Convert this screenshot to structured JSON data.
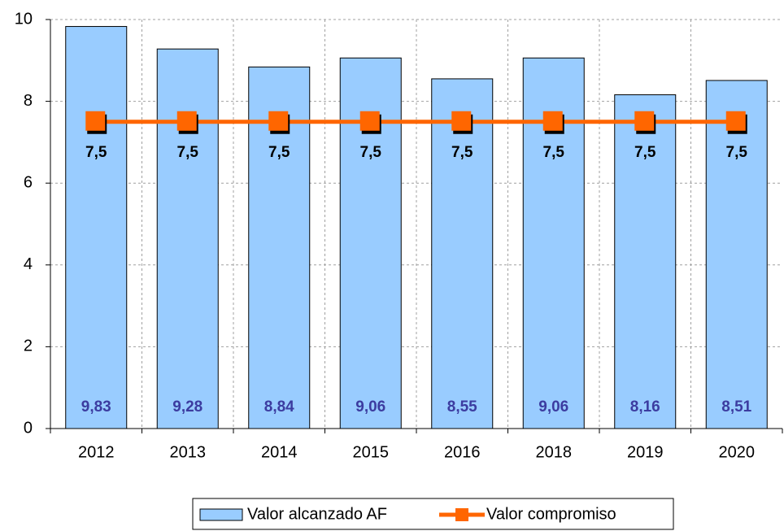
{
  "chart_data": {
    "type": "bar",
    "categories": [
      "2012",
      "2013",
      "2014",
      "2015",
      "2016",
      "2018",
      "2019",
      "2020"
    ],
    "series": [
      {
        "name": "Valor alcanzado AF",
        "type": "bar",
        "color": "#99ccff",
        "values": [
          9.83,
          9.28,
          8.84,
          9.06,
          8.55,
          9.06,
          8.16,
          8.51
        ],
        "value_labels": [
          "9,83",
          "9,28",
          "8,84",
          "9,06",
          "8,55",
          "9,06",
          "8,16",
          "8,51"
        ]
      },
      {
        "name": "Valor compromiso",
        "type": "line",
        "color": "#ff6600",
        "values": [
          7.5,
          7.5,
          7.5,
          7.5,
          7.5,
          7.5,
          7.5,
          7.5
        ],
        "value_labels": [
          "7,5",
          "7,5",
          "7,5",
          "7,5",
          "7,5",
          "7,5",
          "7,5",
          "7,5"
        ]
      }
    ],
    "ylim": [
      0,
      10
    ],
    "yticks": [
      0,
      2,
      4,
      6,
      8,
      10
    ],
    "grid": true,
    "legend": "bottom"
  }
}
